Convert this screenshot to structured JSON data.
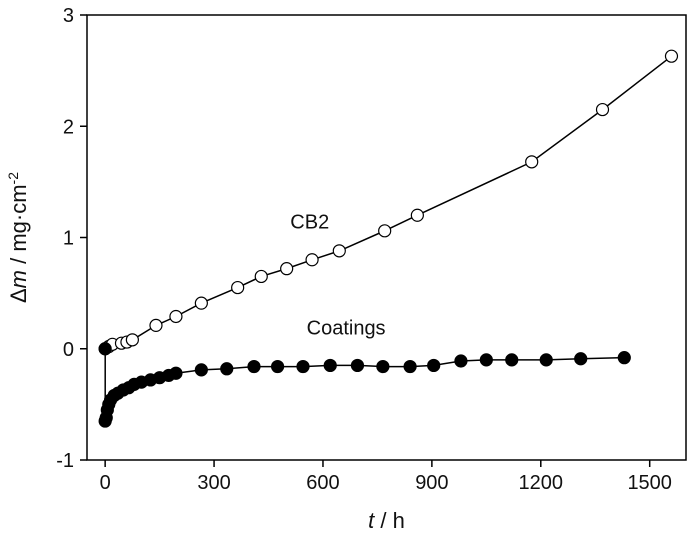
{
  "chart_data": {
    "type": "line",
    "xlabel": {
      "var": "t",
      "sep": " / ",
      "unit": "h"
    },
    "ylabel": {
      "delta": "Δ",
      "var": "m",
      "sep": " / ",
      "unit": "mg·cm",
      "exp": "-2"
    },
    "xlim": [
      -50,
      1600
    ],
    "ylim": [
      -1,
      3
    ],
    "xticks": [
      0,
      300,
      600,
      900,
      1200,
      1500
    ],
    "yticks": [
      -1,
      0,
      1,
      2,
      3
    ],
    "grid": false,
    "series": [
      {
        "name": "CB2",
        "marker": "open-circle",
        "x": [
          0,
          10,
          20,
          45,
          60,
          75,
          140,
          195,
          265,
          365,
          430,
          500,
          570,
          645,
          770,
          860,
          1175,
          1370,
          1560
        ],
        "y": [
          0,
          0.02,
          0.04,
          0.05,
          0.06,
          0.08,
          0.21,
          0.29,
          0.41,
          0.55,
          0.65,
          0.72,
          0.8,
          0.88,
          1.06,
          1.2,
          1.68,
          2.15,
          2.63
        ]
      },
      {
        "name": "Coatings",
        "marker": "filled-circle",
        "x": [
          0,
          0,
          3,
          6,
          10,
          15,
          25,
          35,
          50,
          65,
          80,
          100,
          125,
          150,
          175,
          195,
          265,
          335,
          410,
          475,
          545,
          620,
          695,
          765,
          840,
          905,
          980,
          1050,
          1120,
          1215,
          1310,
          1430
        ],
        "y": [
          0,
          -0.65,
          -0.62,
          -0.55,
          -0.5,
          -0.46,
          -0.42,
          -0.4,
          -0.37,
          -0.35,
          -0.32,
          -0.3,
          -0.28,
          -0.26,
          -0.24,
          -0.22,
          -0.19,
          -0.18,
          -0.16,
          -0.16,
          -0.16,
          -0.15,
          -0.15,
          -0.16,
          -0.16,
          -0.15,
          -0.11,
          -0.1,
          -0.1,
          -0.1,
          -0.09,
          -0.08
        ]
      }
    ],
    "annotations": [
      {
        "text": "CB2",
        "series": "CB2",
        "x": 510,
        "y": 1.08
      },
      {
        "text": "Coatings",
        "series": "Coatings",
        "x": 555,
        "y": 0.13
      }
    ]
  }
}
